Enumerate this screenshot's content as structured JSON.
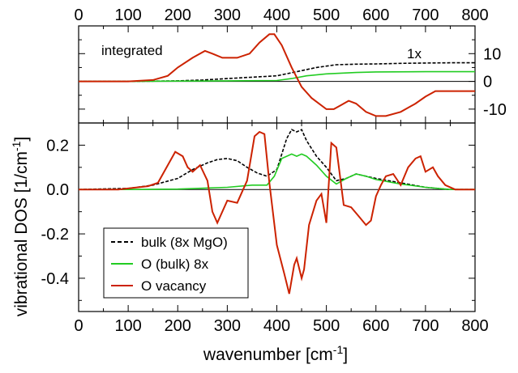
{
  "chart_data": [
    {
      "type": "line",
      "panel": "top",
      "xlim": [
        0,
        800
      ],
      "ylim": [
        -15,
        20
      ],
      "x_ticks": [
        "0",
        "100",
        "200",
        "300",
        "400",
        "500",
        "600",
        "700",
        "800"
      ],
      "y_ticks_right": [
        "10",
        "0",
        "-10"
      ],
      "y_tick_values": [
        10,
        0,
        -10
      ],
      "annotations": [
        "integrated",
        "1x"
      ],
      "series": [
        {
          "color": "#000000",
          "dash": "dashed",
          "x": [
            0,
            100,
            200,
            250,
            300,
            350,
            400,
            440,
            480,
            520,
            560,
            600,
            650,
            700,
            750,
            800
          ],
          "y": [
            0,
            0,
            0.2,
            0.5,
            1,
            1.5,
            2,
            3.5,
            5,
            6,
            6.2,
            6.3,
            6.5,
            6.6,
            6.7,
            6.7
          ]
        },
        {
          "color": "#22cc22",
          "dash": "solid",
          "x": [
            0,
            100,
            200,
            300,
            400,
            430,
            460,
            500,
            560,
            600,
            700,
            800
          ],
          "y": [
            0,
            0,
            0.1,
            0.2,
            0.3,
            1,
            2,
            2.7,
            3.2,
            3.4,
            3.5,
            3.5
          ]
        },
        {
          "color": "#cc2200",
          "dash": "solid",
          "x": [
            0,
            100,
            150,
            180,
            200,
            230,
            255,
            270,
            290,
            320,
            345,
            365,
            385,
            395,
            410,
            430,
            450,
            470,
            500,
            515,
            530,
            545,
            560,
            580,
            600,
            620,
            650,
            680,
            700,
            720,
            760,
            800
          ],
          "y": [
            0,
            0,
            0.5,
            2,
            5,
            8.5,
            11,
            10,
            8.5,
            8.5,
            10,
            14,
            17,
            17,
            13,
            5,
            -2,
            -6,
            -10,
            -10,
            -8.5,
            -7,
            -8,
            -11,
            -12.5,
            -12.5,
            -11,
            -8,
            -5.5,
            -3.5,
            -3.5,
            -3.5
          ]
        }
      ]
    },
    {
      "type": "line",
      "panel": "bottom",
      "xlim": [
        0,
        800
      ],
      "ylim": [
        -0.55,
        0.3
      ],
      "x_ticks": [
        "0",
        "100",
        "200",
        "300",
        "400",
        "500",
        "600",
        "700",
        "800"
      ],
      "y_ticks": [
        "0.2",
        "0.0",
        "-0.2",
        "-0.4"
      ],
      "y_tick_values": [
        0.2,
        0,
        -0.2,
        -0.4
      ],
      "xlabel": "wavenumber [cm",
      "xlabel_sup": "-1",
      "xlabel_end": "]",
      "ylabel": "vibrational DOS [1/cm",
      "ylabel_sup": "-1",
      "ylabel_end": "]",
      "legend_position": "lower-left",
      "series": [
        {
          "name": "bulk (8x MgO)",
          "color": "#000000",
          "dash": "dashed",
          "x": [
            0,
            100,
            150,
            200,
            230,
            260,
            280,
            300,
            320,
            340,
            360,
            380,
            400,
            420,
            430,
            440,
            450,
            460,
            480,
            500,
            520,
            540,
            560,
            580,
            600,
            650,
            700,
            750,
            800
          ],
          "y": [
            0,
            0.005,
            0.02,
            0.05,
            0.09,
            0.12,
            0.135,
            0.14,
            0.13,
            0.1,
            0.075,
            0.06,
            0.09,
            0.23,
            0.27,
            0.26,
            0.27,
            0.22,
            0.15,
            0.1,
            0.04,
            0.05,
            0.07,
            0.06,
            0.05,
            0.03,
            0.01,
            0,
            0
          ]
        },
        {
          "name": "O (bulk) 8x",
          "color": "#22cc22",
          "dash": "solid",
          "x": [
            0,
            100,
            200,
            300,
            350,
            380,
            395,
            410,
            430,
            440,
            450,
            460,
            480,
            500,
            520,
            540,
            560,
            580,
            600,
            650,
            700,
            750,
            800
          ],
          "y": [
            0,
            0,
            0.002,
            0.01,
            0.02,
            0.02,
            0.06,
            0.14,
            0.16,
            0.15,
            0.16,
            0.15,
            0.11,
            0.06,
            0.025,
            0.05,
            0.07,
            0.06,
            0.045,
            0.025,
            0.01,
            0,
            0
          ]
        },
        {
          "name": "O vacancy",
          "color": "#cc2200",
          "dash": "solid",
          "x": [
            0,
            80,
            120,
            140,
            160,
            180,
            195,
            210,
            220,
            230,
            245,
            260,
            270,
            280,
            300,
            320,
            340,
            355,
            365,
            375,
            385,
            400,
            415,
            425,
            435,
            440,
            450,
            455,
            465,
            480,
            490,
            500,
            510,
            520,
            535,
            550,
            565,
            580,
            590,
            600,
            610,
            620,
            635,
            650,
            665,
            680,
            690,
            700,
            715,
            725,
            740,
            760,
            800
          ],
          "y": [
            0,
            0,
            0.01,
            0.015,
            0.03,
            0.11,
            0.17,
            0.15,
            0.1,
            0.08,
            0.11,
            0.04,
            -0.1,
            -0.15,
            -0.05,
            -0.06,
            0.04,
            0.24,
            0.26,
            0.25,
            0.03,
            -0.25,
            -0.38,
            -0.47,
            -0.34,
            -0.31,
            -0.4,
            -0.36,
            -0.16,
            -0.05,
            -0.02,
            -0.15,
            0.21,
            0.19,
            -0.07,
            -0.08,
            -0.12,
            -0.16,
            -0.14,
            -0.03,
            0.02,
            0.06,
            0.07,
            0.02,
            0.1,
            0.14,
            0.15,
            0.08,
            0.1,
            0.06,
            0.02,
            0,
            0
          ]
        }
      ]
    }
  ]
}
